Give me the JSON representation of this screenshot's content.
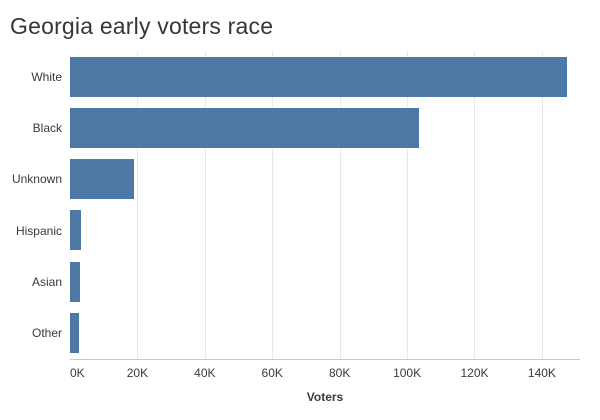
{
  "chart_data": {
    "type": "bar",
    "orientation": "horizontal",
    "title": "Georgia early voters race",
    "categories": [
      "White",
      "Black",
      "Unknown",
      "Hispanic",
      "Asian",
      "Other"
    ],
    "values": [
      147500,
      103500,
      19000,
      3400,
      3000,
      2700
    ],
    "xlabel": "Voters",
    "ylabel": "",
    "xlim": [
      0,
      151300
    ],
    "xticks": [
      0,
      20000,
      40000,
      60000,
      80000,
      100000,
      120000,
      140000
    ],
    "xtick_labels": [
      "0K",
      "20K",
      "40K",
      "60K",
      "80K",
      "100K",
      "120K",
      "140K"
    ],
    "grid": "vertical",
    "legend": "none",
    "bar_color": "#4e79a7"
  },
  "colors": {
    "bar": "#4e79a7",
    "title_text": "#363636",
    "label_text": "#3a3a3a",
    "gridline": "#e9e9e9",
    "axis_line": "#c9c9c9",
    "background": "#ffffff"
  }
}
